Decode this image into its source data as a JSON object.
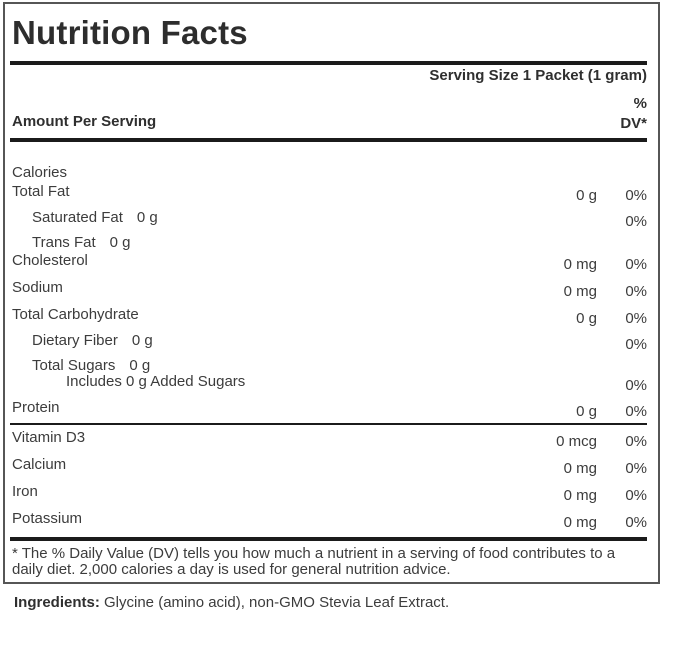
{
  "label": {
    "title": "Nutrition Facts",
    "serving_size": "Serving Size 1 Packet (1 gram)",
    "amount_header": "Amount Per Serving",
    "dv_header_line1": "%",
    "dv_header_line2": "DV*",
    "main_rows": [
      {
        "name": "Calories",
        "indent": 0,
        "inline_amount": "",
        "amount": "",
        "percent": ""
      },
      {
        "name": "Total Fat",
        "indent": 0,
        "inline_amount": "",
        "amount": "0 g",
        "percent": "0%"
      },
      {
        "name": "Saturated Fat",
        "indent": 1,
        "inline_amount": "0 g",
        "amount": "",
        "percent": "0%"
      },
      {
        "name": "Trans Fat",
        "indent": 1,
        "inline_amount": "0 g",
        "amount": "",
        "percent": ""
      },
      {
        "name": "Cholesterol",
        "indent": 0,
        "inline_amount": "",
        "amount": "0 mg",
        "percent": "0%"
      },
      {
        "name": "Sodium",
        "indent": 0,
        "inline_amount": "",
        "amount": "0 mg",
        "percent": "0%"
      },
      {
        "name": "Total Carbohydrate",
        "indent": 0,
        "inline_amount": "",
        "amount": "0 g",
        "percent": "0%"
      },
      {
        "name": "Dietary Fiber",
        "indent": 1,
        "inline_amount": "0 g",
        "amount": "",
        "percent": "0%"
      },
      {
        "name": "Total Sugars",
        "indent": 1,
        "inline_amount": "0 g",
        "amount": "",
        "percent": ""
      },
      {
        "name": "Includes 0 g Added Sugars",
        "indent": 2,
        "inline_amount": "",
        "amount": "",
        "percent": "0%"
      },
      {
        "name": "Protein",
        "indent": 0,
        "inline_amount": "",
        "amount": "0 g",
        "percent": "0%"
      }
    ],
    "vitamin_rows": [
      {
        "name": "Vitamin D3",
        "indent": 0,
        "inline_amount": "",
        "amount": "0 mcg",
        "percent": "0%"
      },
      {
        "name": "Calcium",
        "indent": 0,
        "inline_amount": "",
        "amount": "0 mg",
        "percent": "0%"
      },
      {
        "name": "Iron",
        "indent": 0,
        "inline_amount": "",
        "amount": "0 mg",
        "percent": "0%"
      },
      {
        "name": "Potassium",
        "indent": 0,
        "inline_amount": "",
        "amount": "0 mg",
        "percent": "0%"
      }
    ],
    "footnote": "* The % Daily Value (DV) tells you how much a nutrient in a serving of food contributes to a daily diet. 2,000 calories a day is used for general nutrition advice.",
    "ingredients_label": "Ingredients:",
    "ingredients_text": " Glycine (amino acid), non-GMO Stevia Leaf Extract.",
    "colors": {
      "text": "#3c3c3c",
      "bar": "#1b1b1b",
      "border": "#565656",
      "background": "#ffffff"
    }
  }
}
